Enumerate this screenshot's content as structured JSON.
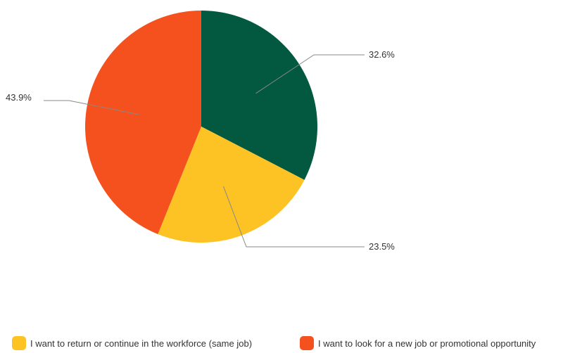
{
  "chart_data": {
    "type": "pie",
    "title": "",
    "slices": [
      {
        "label": "",
        "value": 32.6,
        "display": "32.6%",
        "color": "#02593f"
      },
      {
        "label": "I want to return or continue in the workforce (same job)",
        "value": 23.5,
        "display": "23.5%",
        "color": "#fdc325"
      },
      {
        "label": "I want to look for a new job or promotional opportunity",
        "value": 43.9,
        "display": "43.9%",
        "color": "#f4511e"
      }
    ],
    "legend": {
      "placement": "bottom",
      "items": [
        {
          "label": "I want to return or continue in the workforce (same job)",
          "color": "#fdc325"
        },
        {
          "label": "I want to look for a new job or promotional opportunity",
          "color": "#f4511e"
        }
      ]
    }
  }
}
